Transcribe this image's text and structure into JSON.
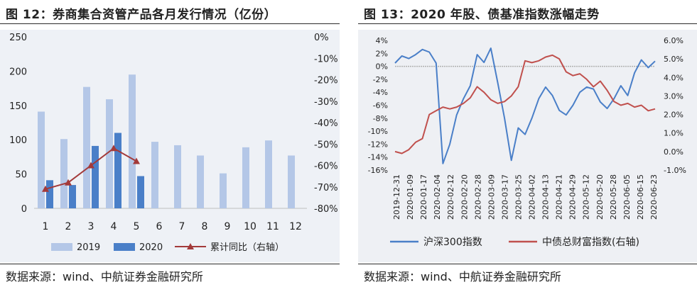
{
  "left": {
    "title": "图 12：券商集合资管产品各月发行情况（亿份）",
    "source": "数据来源：wind、中航证券金融研究所",
    "chart_data": {
      "type": "bar",
      "categories": [
        "1",
        "2",
        "3",
        "4",
        "5",
        "6",
        "7",
        "8",
        "9",
        "10",
        "11",
        "12"
      ],
      "series": [
        {
          "name": "2019",
          "type": "bar",
          "color": "#b4c7e7",
          "values": [
            141,
            101,
            177,
            159,
            195,
            97,
            92,
            77,
            51,
            89,
            99,
            77
          ]
        },
        {
          "name": "2020",
          "type": "bar",
          "color": "#4a7fc8",
          "values": [
            41,
            34,
            91,
            110,
            47,
            null,
            null,
            null,
            null,
            null,
            null,
            null
          ]
        },
        {
          "name": "累计同比（右轴）",
          "type": "line",
          "axis": "right",
          "color": "#a33a3a",
          "values": [
            -71,
            -68,
            -60,
            -52,
            -58,
            null,
            null,
            null,
            null,
            null,
            null,
            null
          ]
        }
      ],
      "y_left": {
        "min": 0,
        "max": 250,
        "ticks": [
          "0",
          "50",
          "100",
          "150",
          "200",
          "250"
        ]
      },
      "y_right": {
        "min": -80,
        "max": 0,
        "ticks": [
          "0%",
          "-10%",
          "-20%",
          "-30%",
          "-40%",
          "-50%",
          "-60%",
          "-70%",
          "-80%"
        ]
      },
      "legend_position": "bottom"
    }
  },
  "right": {
    "title": "图 13：2020 年股、债基准指数涨幅走势",
    "source": "数据来源：wind、中航证券金融研究所",
    "chart_data": {
      "type": "line",
      "x_ticks": [
        "2019-12-31",
        "2020-01-09",
        "2020-01-17",
        "2020-02-04",
        "2020-02-12",
        "2020-02-20",
        "2020-02-28",
        "2020-03-09",
        "2020-03-17",
        "2020-03-25",
        "2020-04-02",
        "2020-04-13",
        "2020-04-21",
        "2020-04-29",
        "2020-05-12",
        "2020-05-20",
        "2020-05-28",
        "2020-06-05",
        "2020-06-15",
        "2020-06-23"
      ],
      "series": [
        {
          "name": "沪深300指数",
          "axis": "left",
          "color": "#4a7fc8",
          "values": [
            0.5,
            1.6,
            1.2,
            1.8,
            2.6,
            2.2,
            0.5,
            -15.0,
            -12.0,
            -7.5,
            -5.0,
            -3.0,
            1.8,
            0.6,
            2.8,
            -2.5,
            -8.0,
            -14.5,
            -9.5,
            -10.5,
            -8.0,
            -5.0,
            -3.2,
            -4.5,
            -6.8,
            -7.5,
            -6.0,
            -4.0,
            -3.2,
            -3.5,
            -5.5,
            -6.5,
            -5.0,
            -3.0,
            -4.5,
            -1.0,
            1.0,
            -0.2,
            0.8
          ]
        },
        {
          "name": "中债总财富指数(右轴)",
          "axis": "right",
          "color": "#c0504d",
          "values": [
            0.0,
            -0.1,
            0.1,
            0.5,
            0.7,
            2.0,
            2.2,
            2.4,
            2.3,
            2.4,
            2.6,
            2.9,
            3.5,
            3.2,
            2.8,
            2.6,
            2.7,
            3.0,
            3.5,
            4.9,
            4.8,
            4.9,
            5.1,
            5.2,
            5.0,
            4.3,
            4.1,
            4.2,
            3.9,
            3.5,
            3.8,
            3.3,
            2.7,
            2.5,
            2.6,
            2.4,
            2.5,
            2.2,
            2.3
          ]
        }
      ],
      "y_left": {
        "min": -16,
        "max": 4,
        "ticks": [
          "4%",
          "2%",
          "0%",
          "-2%",
          "-4%",
          "-6%",
          "-8%",
          "-10%",
          "-12%",
          "-14%",
          "-16%"
        ]
      },
      "y_right": {
        "min": -1,
        "max": 6,
        "ticks": [
          "6.0%",
          "5.0%",
          "4.0%",
          "3.0%",
          "2.0%",
          "1.0%",
          "0.0%",
          "-1.0%"
        ]
      },
      "grid": false,
      "legend_position": "bottom"
    }
  }
}
